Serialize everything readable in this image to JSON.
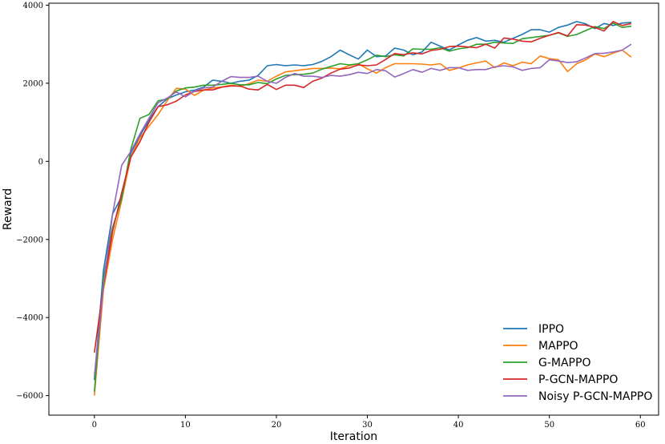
{
  "chart_data": {
    "type": "line",
    "title": "",
    "xlabel": "Iteration",
    "ylabel": "Reward",
    "xlim": [
      -5,
      62
    ],
    "ylim": [
      -6500,
      4050
    ],
    "xticks": [
      0,
      10,
      20,
      30,
      40,
      50,
      60
    ],
    "yticks": [
      -6000,
      -4000,
      -2000,
      0,
      2000,
      4000
    ],
    "xtick_labels": [
      "0",
      "10",
      "20",
      "30",
      "40",
      "50",
      "60"
    ],
    "ytick_labels": [
      "−6000",
      "−4000",
      "−2000",
      "0",
      "2000",
      "4000"
    ],
    "grid": false,
    "legend_position": "lower-right",
    "x": [
      0,
      1,
      2,
      3,
      4,
      5,
      6,
      7,
      8,
      9,
      10,
      11,
      12,
      13,
      14,
      15,
      16,
      17,
      18,
      19,
      20,
      21,
      22,
      23,
      24,
      25,
      26,
      27,
      28,
      29,
      30,
      31,
      32,
      33,
      34,
      35,
      36,
      37,
      38,
      39,
      40,
      41,
      42,
      43,
      44,
      45,
      46,
      47,
      48,
      49,
      50,
      51,
      52,
      53,
      54,
      55,
      56,
      57,
      58,
      59
    ],
    "series": [
      {
        "name": "IPPO",
        "color": "#1f77b4",
        "values": [
          -5600,
          -2800,
          -1350,
          -900,
          200,
          650,
          1050,
          1400,
          1600,
          1700,
          1780,
          1820,
          1900,
          2080,
          2050,
          2000,
          2050,
          2080,
          2200,
          2450,
          2480,
          2450,
          2470,
          2450,
          2480,
          2560,
          2680,
          2850,
          2730,
          2620,
          2850,
          2680,
          2700,
          2900,
          2850,
          2730,
          2800,
          3050,
          2950,
          2850,
          2980,
          3100,
          3170,
          3080,
          3100,
          3050,
          3150,
          3250,
          3370,
          3370,
          3310,
          3430,
          3490,
          3580,
          3520,
          3400,
          3530,
          3480,
          3540,
          3560
        ]
      },
      {
        "name": "MAPPO",
        "color": "#ff7f0e",
        "values": [
          -6000,
          -3300,
          -2000,
          -1000,
          100,
          600,
          900,
          1200,
          1550,
          1870,
          1850,
          1690,
          1820,
          1880,
          1900,
          1950,
          1920,
          1990,
          2080,
          2050,
          2180,
          2290,
          2320,
          2350,
          2380,
          2380,
          2390,
          2370,
          2450,
          2500,
          2370,
          2260,
          2400,
          2500,
          2500,
          2500,
          2490,
          2470,
          2500,
          2330,
          2390,
          2470,
          2520,
          2570,
          2400,
          2520,
          2450,
          2540,
          2500,
          2700,
          2630,
          2600,
          2300,
          2500,
          2600,
          2750,
          2680,
          2770,
          2850,
          2670
        ]
      },
      {
        "name": "G-MAPPO",
        "color": "#2ca02c",
        "values": [
          -5900,
          -3000,
          -1700,
          -950,
          300,
          1100,
          1200,
          1550,
          1600,
          1800,
          1880,
          1900,
          1950,
          1950,
          1970,
          2000,
          1960,
          1960,
          2020,
          1990,
          2110,
          2200,
          2220,
          2230,
          2260,
          2360,
          2430,
          2500,
          2470,
          2500,
          2600,
          2720,
          2680,
          2730,
          2700,
          2880,
          2870,
          2870,
          2910,
          2820,
          2880,
          2910,
          3000,
          3000,
          3050,
          3030,
          3020,
          3140,
          3170,
          3200,
          3230,
          3290,
          3200,
          3250,
          3350,
          3450,
          3400,
          3540,
          3430,
          3460
        ]
      },
      {
        "name": "P-GCN-MAPPO",
        "color": "#d62728",
        "values": [
          -4900,
          -3200,
          -1800,
          -800,
          100,
          500,
          1000,
          1400,
          1450,
          1540,
          1700,
          1790,
          1830,
          1830,
          1900,
          1930,
          1930,
          1850,
          1830,
          1970,
          1840,
          1950,
          1950,
          1890,
          2050,
          2130,
          2260,
          2360,
          2390,
          2470,
          2450,
          2470,
          2610,
          2760,
          2730,
          2780,
          2750,
          2840,
          2870,
          2940,
          2950,
          2930,
          2910,
          3000,
          2900,
          3160,
          3130,
          3080,
          3060,
          3150,
          3230,
          3300,
          3210,
          3500,
          3490,
          3430,
          3340,
          3580,
          3480,
          3530
        ]
      },
      {
        "name": "Noisy P-GCN-MAPPO",
        "color": "#9467bd",
        "values": [
          -5500,
          -3200,
          -1350,
          -100,
          250,
          700,
          1100,
          1500,
          1620,
          1780,
          1650,
          1800,
          1880,
          1900,
          2050,
          2170,
          2150,
          2150,
          2180,
          2050,
          2000,
          2150,
          2250,
          2180,
          2180,
          2150,
          2200,
          2180,
          2220,
          2280,
          2250,
          2350,
          2320,
          2160,
          2250,
          2350,
          2280,
          2380,
          2330,
          2400,
          2400,
          2330,
          2350,
          2350,
          2420,
          2450,
          2420,
          2330,
          2380,
          2400,
          2600,
          2570,
          2530,
          2550,
          2650,
          2760,
          2770,
          2800,
          2850,
          3000
        ]
      }
    ]
  }
}
